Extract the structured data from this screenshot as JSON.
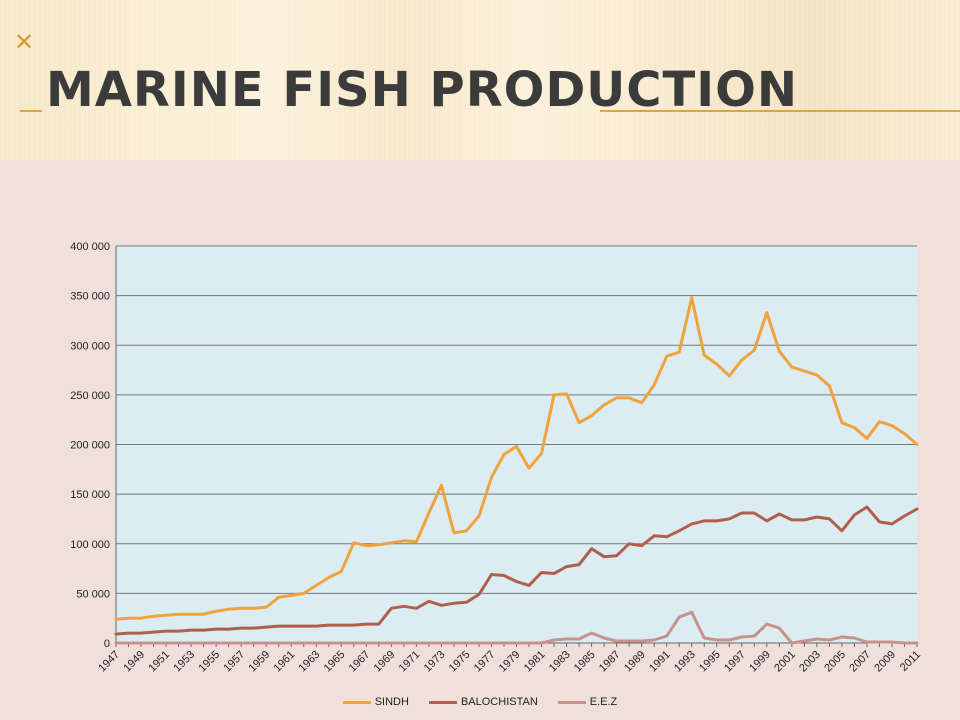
{
  "slide": {
    "title": "MARINE FISH PRODUCTION",
    "bullet_glyph": "✕"
  },
  "colors": {
    "sindh": "#f0a23c",
    "balochistan": "#b0604a",
    "eez": "#c8928a",
    "plot_bg": "#dbedf3",
    "grid": "#777777"
  },
  "chart_data": {
    "type": "line",
    "x": [
      1947,
      1948,
      1949,
      1950,
      1951,
      1952,
      1953,
      1954,
      1955,
      1956,
      1957,
      1958,
      1959,
      1960,
      1961,
      1962,
      1963,
      1964,
      1965,
      1966,
      1967,
      1968,
      1969,
      1970,
      1971,
      1972,
      1973,
      1974,
      1975,
      1976,
      1977,
      1978,
      1979,
      1980,
      1981,
      1982,
      1983,
      1984,
      1985,
      1986,
      1987,
      1988,
      1989,
      1990,
      1991,
      1992,
      1993,
      1994,
      1995,
      1996,
      1997,
      1998,
      1999,
      2000,
      2001,
      2002,
      2003,
      2004,
      2005,
      2006,
      2007,
      2008,
      2009,
      2010,
      2011
    ],
    "x_tick_labels": [
      "1947",
      "1949",
      "1951",
      "1953",
      "1955",
      "1957",
      "1959",
      "1961",
      "1963",
      "1965",
      "1967",
      "1969",
      "1971",
      "1973",
      "1975",
      "1977",
      "1979",
      "1981",
      "1983",
      "1985",
      "1987",
      "1989",
      "1991",
      "1993",
      "1995",
      "1997",
      "1999",
      "2001",
      "2003",
      "2005",
      "2007",
      "2009",
      "2011"
    ],
    "y_tick_labels": [
      "0",
      "50 000",
      "100 000",
      "150 000",
      "200 000",
      "250 000",
      "300 000",
      "350 000",
      "400 000"
    ],
    "ylim": [
      0,
      400000
    ],
    "grid": true,
    "legend_position": "bottom",
    "series": [
      {
        "name": "SINDH",
        "values": [
          24000,
          25000,
          25000,
          27000,
          28000,
          29000,
          29000,
          29000,
          32000,
          34000,
          35000,
          35000,
          36000,
          46000,
          48000,
          50000,
          58000,
          66000,
          72000,
          101000,
          98000,
          99000,
          101000,
          103000,
          102000,
          131000,
          159000,
          111000,
          113000,
          128000,
          167000,
          190000,
          198000,
          176000,
          191000,
          250000,
          251000,
          222000,
          229000,
          240000,
          247000,
          247000,
          242000,
          260000,
          289000,
          293000,
          348000,
          290000,
          281000,
          269000,
          285000,
          295000,
          333000,
          294000,
          278000,
          274000,
          270000,
          259000,
          222000,
          217000,
          206000,
          223000,
          219000,
          211000,
          200000
        ]
      },
      {
        "name": "BALOCHISTAN",
        "values": [
          9000,
          10000,
          10000,
          11000,
          12000,
          12000,
          13000,
          13000,
          14000,
          14000,
          15000,
          15000,
          16000,
          17000,
          17000,
          17000,
          17000,
          18000,
          18000,
          18000,
          19000,
          19000,
          35000,
          37000,
          35000,
          42000,
          38000,
          40000,
          41000,
          49000,
          69000,
          68000,
          62000,
          58000,
          71000,
          70000,
          77000,
          79000,
          95000,
          87000,
          88000,
          100000,
          98000,
          108000,
          107000,
          113000,
          120000,
          123000,
          123000,
          125000,
          131000,
          131000,
          123000,
          130000,
          124000,
          124000,
          127000,
          125000,
          113000,
          129000,
          137000,
          122000,
          120000,
          128000,
          135000
        ]
      },
      {
        "name": "E.E.Z",
        "values": [
          0,
          0,
          0,
          0,
          0,
          0,
          0,
          0,
          0,
          0,
          0,
          0,
          0,
          0,
          0,
          0,
          0,
          0,
          0,
          0,
          0,
          0,
          0,
          0,
          0,
          0,
          0,
          0,
          0,
          0,
          0,
          0,
          0,
          0,
          0,
          3000,
          4000,
          4000,
          10000,
          5000,
          2000,
          2000,
          2000,
          3000,
          7000,
          26000,
          31000,
          5000,
          3000,
          3000,
          6000,
          7000,
          19000,
          15000,
          0,
          2000,
          4000,
          3000,
          6000,
          5000,
          1000,
          1000,
          1000,
          0,
          0
        ]
      }
    ]
  }
}
